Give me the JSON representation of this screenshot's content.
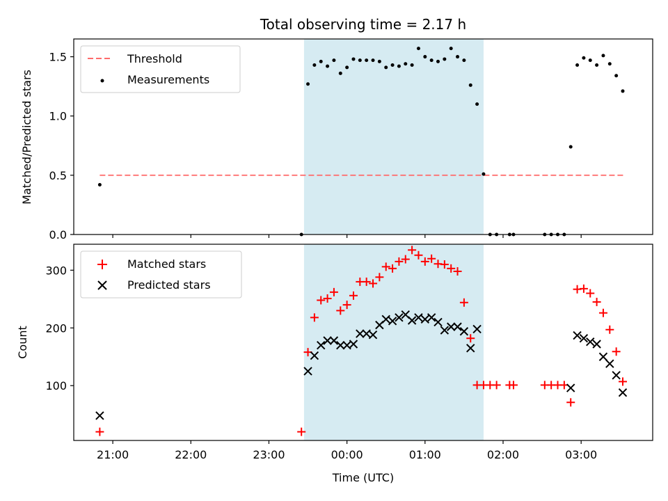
{
  "chart_data": [
    {
      "type": "scatter",
      "title": "Total observing time = 2.17 h",
      "xlabel": "",
      "ylabel": "Matched/Predicted stars",
      "ylim": [
        0,
        1.65
      ],
      "yticks": [
        "0.0",
        "0.5",
        "1.0",
        "1.5"
      ],
      "ytick_values": [
        0,
        0.5,
        1.0,
        1.5
      ],
      "xlim": [
        "20:30",
        "03:55"
      ],
      "shaded_region": {
        "x_start": "23:27",
        "x_end": "01:45",
        "color": "#add8e6"
      },
      "threshold": {
        "name": "Threshold",
        "value": 0.5,
        "x": [
          "20:50",
          "03:33"
        ],
        "color": "#ff6b6b"
      },
      "legend": [
        "Threshold",
        "Measurements"
      ],
      "legend_position": "upper-left",
      "series": [
        {
          "name": "Measurements",
          "color": "#000000",
          "marker": "dot",
          "points": [
            [
              "20:50",
              0.42
            ],
            [
              "23:25",
              0.0
            ],
            [
              "23:30",
              1.27
            ],
            [
              "23:35",
              1.43
            ],
            [
              "23:40",
              1.46
            ],
            [
              "23:45",
              1.42
            ],
            [
              "23:50",
              1.47
            ],
            [
              "23:55",
              1.36
            ],
            [
              "00:00",
              1.41
            ],
            [
              "00:05",
              1.48
            ],
            [
              "00:10",
              1.47
            ],
            [
              "00:15",
              1.47
            ],
            [
              "00:20",
              1.47
            ],
            [
              "00:25",
              1.46
            ],
            [
              "00:30",
              1.41
            ],
            [
              "00:35",
              1.43
            ],
            [
              "00:40",
              1.42
            ],
            [
              "00:45",
              1.44
            ],
            [
              "00:50",
              1.43
            ],
            [
              "00:55",
              1.57
            ],
            [
              "01:00",
              1.5
            ],
            [
              "01:05",
              1.47
            ],
            [
              "01:10",
              1.46
            ],
            [
              "01:15",
              1.48
            ],
            [
              "01:20",
              1.57
            ],
            [
              "01:25",
              1.5
            ],
            [
              "01:30",
              1.47
            ],
            [
              "01:35",
              1.26
            ],
            [
              "01:40",
              1.1
            ],
            [
              "01:45",
              0.51
            ],
            [
              "01:50",
              0.0
            ],
            [
              "01:55",
              0.0
            ],
            [
              "02:05",
              0.0
            ],
            [
              "02:08",
              0.0
            ],
            [
              "02:32",
              0.0
            ],
            [
              "02:37",
              0.0
            ],
            [
              "02:42",
              0.0
            ],
            [
              "02:47",
              0.0
            ],
            [
              "02:52",
              0.74
            ],
            [
              "02:57",
              1.43
            ],
            [
              "03:02",
              1.49
            ],
            [
              "03:07",
              1.47
            ],
            [
              "03:12",
              1.43
            ],
            [
              "03:17",
              1.51
            ],
            [
              "03:22",
              1.44
            ],
            [
              "03:27",
              1.34
            ],
            [
              "03:32",
              1.21
            ]
          ]
        }
      ]
    },
    {
      "type": "scatter",
      "title": "",
      "xlabel": "Time (UTC)",
      "ylabel": "Count",
      "ylim": [
        5,
        345
      ],
      "yticks": [
        "100",
        "200",
        "300"
      ],
      "ytick_values": [
        100,
        200,
        300
      ],
      "xlim": [
        "20:30",
        "03:55"
      ],
      "xticks": [
        "21:00",
        "22:00",
        "23:00",
        "00:00",
        "01:00",
        "02:00",
        "03:00"
      ],
      "shaded_region": {
        "x_start": "23:27",
        "x_end": "01:45",
        "color": "#add8e6"
      },
      "legend": [
        "Matched stars",
        "Predicted stars"
      ],
      "legend_position": "upper-left",
      "series": [
        {
          "name": "Matched stars",
          "color": "#ff0000",
          "marker": "plus",
          "points": [
            [
              "20:50",
              20
            ],
            [
              "23:25",
              20
            ],
            [
              "23:30",
              158
            ],
            [
              "23:35",
              218
            ],
            [
              "23:40",
              248
            ],
            [
              "23:45",
              251
            ],
            [
              "23:50",
              262
            ],
            [
              "23:55",
              230
            ],
            [
              "00:00",
              240
            ],
            [
              "00:05",
              256
            ],
            [
              "00:10",
              280
            ],
            [
              "00:15",
              280
            ],
            [
              "00:20",
              277
            ],
            [
              "00:25",
              288
            ],
            [
              "00:30",
              306
            ],
            [
              "00:35",
              303
            ],
            [
              "00:40",
              315
            ],
            [
              "00:45",
              319
            ],
            [
              "00:50",
              335
            ],
            [
              "00:55",
              326
            ],
            [
              "01:00",
              315
            ],
            [
              "01:05",
              320
            ],
            [
              "01:10",
              311
            ],
            [
              "01:15",
              310
            ],
            [
              "01:20",
              303
            ],
            [
              "01:25",
              298
            ],
            [
              "01:30",
              244
            ],
            [
              "01:35",
              182
            ],
            [
              "01:40",
              101
            ],
            [
              "01:45",
              101
            ],
            [
              "01:50",
              101
            ],
            [
              "01:55",
              101
            ],
            [
              "02:05",
              101
            ],
            [
              "02:08",
              101
            ],
            [
              "02:32",
              101
            ],
            [
              "02:37",
              101
            ],
            [
              "02:42",
              101
            ],
            [
              "02:47",
              101
            ],
            [
              "02:52",
              71
            ],
            [
              "02:57",
              267
            ],
            [
              "03:02",
              268
            ],
            [
              "03:07",
              260
            ],
            [
              "03:12",
              245
            ],
            [
              "03:17",
              226
            ],
            [
              "03:22",
              197
            ],
            [
              "03:27",
              159
            ],
            [
              "03:32",
              107
            ]
          ]
        },
        {
          "name": "Predicted stars",
          "color": "#000000",
          "marker": "x",
          "points": [
            [
              "20:50",
              48
            ],
            [
              "23:30",
              125
            ],
            [
              "23:35",
              152
            ],
            [
              "23:40",
              170
            ],
            [
              "23:45",
              178
            ],
            [
              "23:50",
              178
            ],
            [
              "23:55",
              170
            ],
            [
              "00:00",
              170
            ],
            [
              "00:05",
              172
            ],
            [
              "00:10",
              190
            ],
            [
              "00:15",
              190
            ],
            [
              "00:20",
              188
            ],
            [
              "00:25",
              205
            ],
            [
              "00:30",
              215
            ],
            [
              "00:35",
              212
            ],
            [
              "00:40",
              218
            ],
            [
              "00:45",
              223
            ],
            [
              "00:50",
              213
            ],
            [
              "00:55",
              218
            ],
            [
              "01:00",
              215
            ],
            [
              "01:05",
              218
            ],
            [
              "01:10",
              210
            ],
            [
              "01:15",
              196
            ],
            [
              "01:20",
              202
            ],
            [
              "01:25",
              202
            ],
            [
              "01:30",
              194
            ],
            [
              "01:35",
              165
            ],
            [
              "01:40",
              198
            ],
            [
              "02:52",
              96
            ],
            [
              "02:57",
              187
            ],
            [
              "03:02",
              182
            ],
            [
              "03:07",
              176
            ],
            [
              "03:12",
              172
            ],
            [
              "03:17",
              150
            ],
            [
              "03:22",
              138
            ],
            [
              "03:27",
              118
            ],
            [
              "03:32",
              88
            ]
          ]
        }
      ]
    }
  ]
}
